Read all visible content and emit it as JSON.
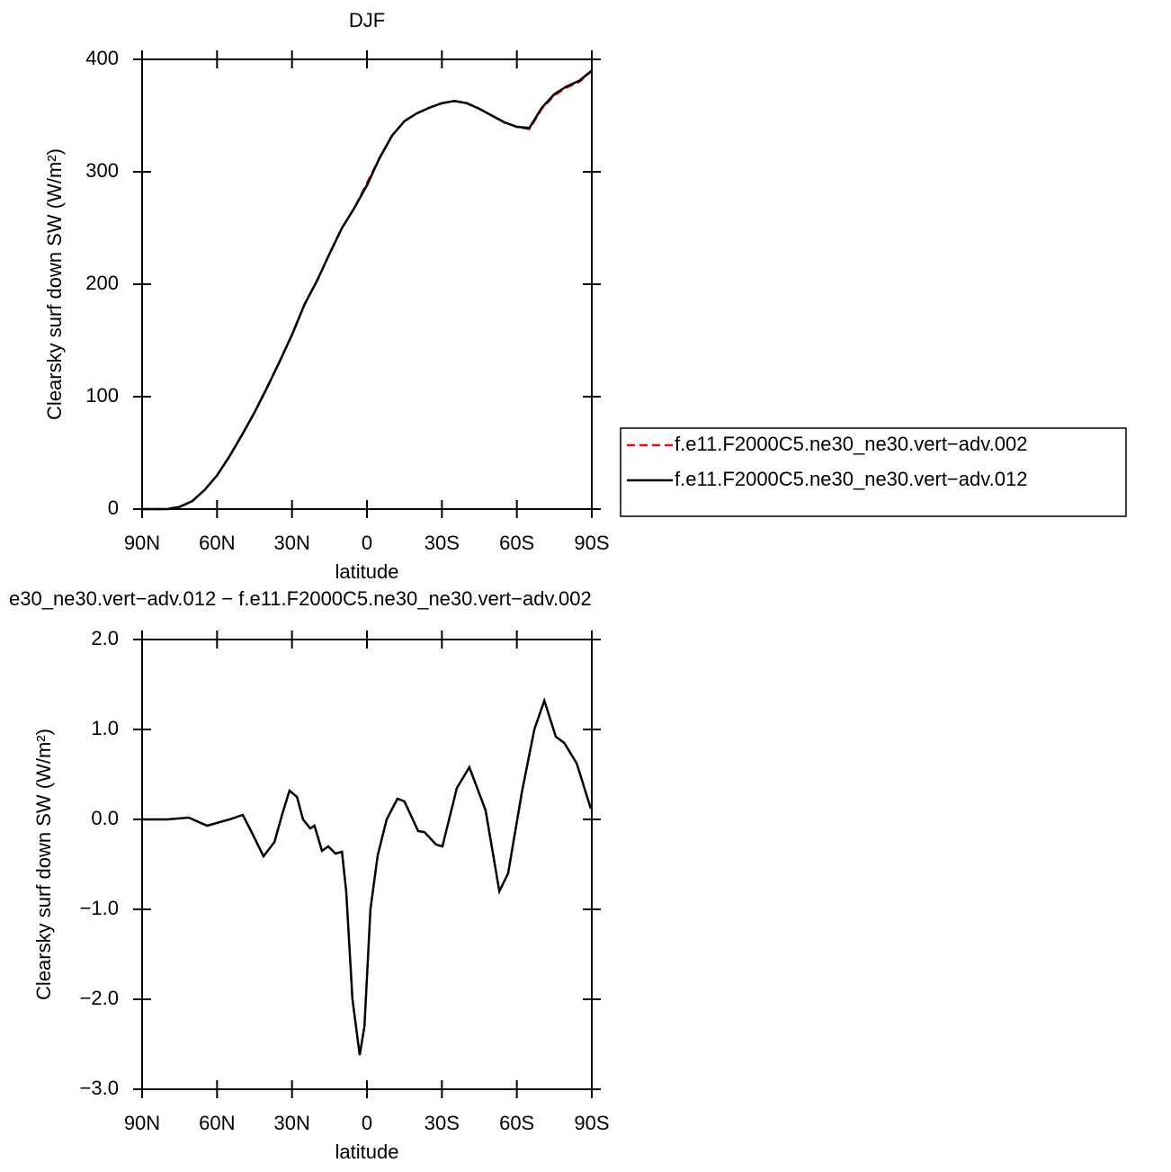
{
  "chart_data": [
    {
      "type": "line",
      "title": "DJF",
      "x_label": "latitude",
      "y_label": "Clearsky surf down SW (W/m²)",
      "x": [
        90,
        85,
        80,
        75,
        70,
        65,
        60,
        55,
        50,
        45,
        40,
        35,
        30,
        25,
        20,
        15,
        10,
        5,
        0,
        -5,
        -10,
        -15,
        -20,
        -25,
        -30,
        -35,
        -40,
        -45,
        -50,
        -55,
        -60,
        -65,
        -70,
        -75,
        -80,
        -85,
        -90
      ],
      "series": [
        {
          "name": "f.e11.F2000C5.ne30_ne30.vert−adv.002",
          "color": "#ff0000",
          "line_style": "dashed",
          "values": [
            0,
            0,
            0,
            2,
            7,
            17,
            30,
            47,
            66,
            86,
            108,
            131,
            155,
            182,
            203,
            227,
            250,
            268,
            290,
            312,
            332,
            345,
            352,
            357,
            361,
            363,
            361,
            356,
            350,
            344,
            340,
            338,
            356,
            368,
            375,
            380,
            390
          ]
        },
        {
          "name": "f.e11.F2000C5.ne30_ne30.vert−adv.012",
          "color": "#000000",
          "line_style": "solid",
          "values": [
            0,
            0,
            0,
            2,
            7,
            17,
            30,
            47,
            66,
            86,
            108,
            131,
            155,
            182,
            203,
            227,
            250,
            268,
            288,
            312,
            332,
            345,
            352,
            357,
            361,
            363,
            361,
            356,
            350,
            344,
            340,
            339,
            357,
            369,
            376,
            381,
            390
          ]
        }
      ],
      "xlim": [
        90,
        -90
      ],
      "xticks": [
        {
          "value": 90,
          "label": "90N"
        },
        {
          "value": 60,
          "label": "60N"
        },
        {
          "value": 30,
          "label": "30N"
        },
        0,
        {
          "value": -30,
          "label": "30S"
        },
        {
          "value": -60,
          "label": "60S"
        },
        {
          "value": -90,
          "label": "90S"
        }
      ],
      "ylim": [
        0,
        400
      ],
      "yticks": [
        0,
        100,
        200,
        300,
        400
      ],
      "legend": "right"
    },
    {
      "type": "line",
      "title": "e30_ne30.vert−adv.012 − f.e11.F2000C5.ne30_ne30.vert−adv.002",
      "x_label": "latitude",
      "y_label": "Clearsky surf down SW (W/m²)",
      "x": [
        90,
        80,
        71.3,
        64,
        55,
        49.7,
        46,
        41.4,
        37,
        34,
        31,
        28,
        25.6,
        22.7,
        21,
        18,
        15.5,
        12.6,
        10,
        8.3,
        5.8,
        2.9,
        1,
        -1.4,
        -4.3,
        -7.9,
        -12.2,
        -15,
        -20.5,
        -23,
        -27.7,
        -30.2,
        -36,
        -41,
        -47.5,
        -53,
        -56.5,
        -62,
        -67,
        -71,
        -75.6,
        -79,
        -84,
        -89.6
      ],
      "series": [
        {
          "color": "#000000",
          "line_style": "solid",
          "values": [
            0,
            0,
            0.02,
            -0.07,
            0,
            0.05,
            -0.15,
            -0.41,
            -0.25,
            0.05,
            0.32,
            0.25,
            0,
            -0.1,
            -0.07,
            -0.35,
            -0.3,
            -0.38,
            -0.36,
            -0.8,
            -2.0,
            -2.62,
            -2.3,
            -1.0,
            -0.4,
            0,
            0.23,
            0.2,
            -0.13,
            -0.14,
            -0.28,
            -0.3,
            0.35,
            0.58,
            0.1,
            -0.8,
            -0.6,
            0.3,
            1.0,
            1.32,
            0.92,
            0.85,
            0.62,
            0.12
          ]
        }
      ],
      "xlim": [
        90,
        -90
      ],
      "xticks": [
        {
          "value": 90,
          "label": "90N"
        },
        {
          "value": 60,
          "label": "60N"
        },
        {
          "value": 30,
          "label": "30N"
        },
        0,
        {
          "value": -30,
          "label": "30S"
        },
        {
          "value": -60,
          "label": "60S"
        },
        {
          "value": -90,
          "label": "90S"
        }
      ],
      "ylim": [
        -3,
        2
      ],
      "yticks": [
        {
          "value": -3,
          "label": "−3.0"
        },
        {
          "value": -2,
          "label": "−2.0"
        },
        {
          "value": -1,
          "label": "−1.0"
        },
        {
          "value": 0,
          "label": "0.0"
        },
        {
          "value": 1,
          "label": "1.0"
        },
        {
          "value": 2,
          "label": "2.0"
        }
      ]
    }
  ]
}
